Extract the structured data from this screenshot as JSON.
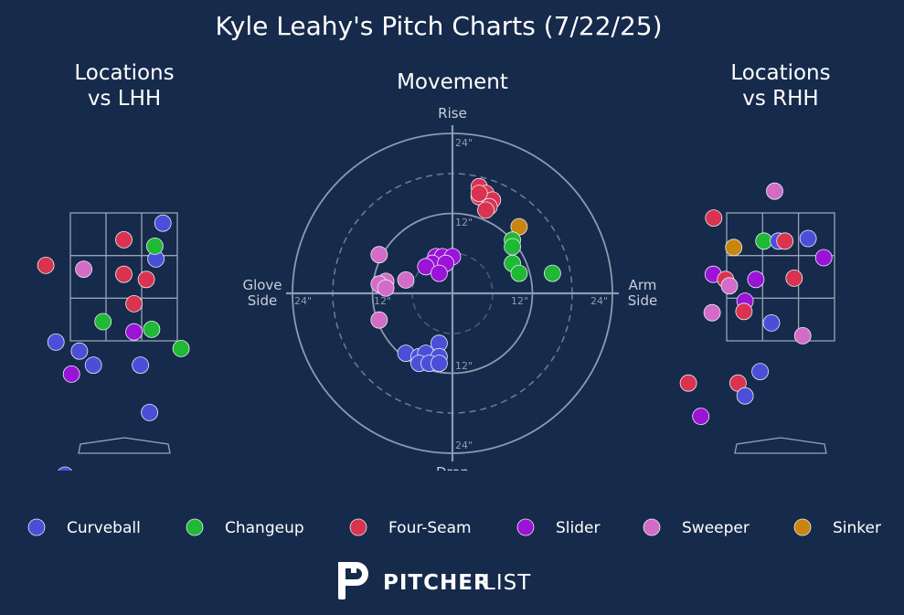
{
  "title": "Kyle Leahy's Pitch Charts (7/22/25)",
  "panels": {
    "lhh": [
      "Locations",
      "vs LHH"
    ],
    "movement": "Movement",
    "rhh": [
      "Locations",
      "vs RHH"
    ]
  },
  "movement_axes": {
    "top": "Rise",
    "bottom": "Drop",
    "left": [
      "Glove",
      "Side"
    ],
    "right": [
      "Arm",
      "Side"
    ],
    "ring_labels": [
      "12\"",
      "24\""
    ]
  },
  "colors": {
    "background": "#162a4b",
    "Curveball": "#4b4fd8",
    "Changeup": "#1fb935",
    "Four-Seam": "#d93350",
    "Slider": "#9b13d6",
    "Sweeper": "#d36cc6",
    "Sinker": "#c8860e"
  },
  "legend": [
    "Curveball",
    "Changeup",
    "Four-Seam",
    "Slider",
    "Sweeper",
    "Sinker"
  ],
  "brand": {
    "bold": "PITCHER",
    "light": "LIST"
  },
  "chart_data": [
    {
      "type": "scatter",
      "title": "Locations vs LHH",
      "xlabel": "",
      "ylabel": "",
      "units": "strike zone widths / heights (zone x: -1..1, y: 0..1)",
      "points": [
        {
          "pitch": "Curveball",
          "x": 0.73,
          "y": 0.92
        },
        {
          "pitch": "Curveball",
          "x": 0.6,
          "y": 0.64
        },
        {
          "pitch": "Curveball",
          "x": -1.27,
          "y": -0.01
        },
        {
          "pitch": "Curveball",
          "x": -0.83,
          "y": -0.08
        },
        {
          "pitch": "Curveball",
          "x": -0.57,
          "y": -0.19
        },
        {
          "pitch": "Curveball",
          "x": 0.31,
          "y": -0.19
        },
        {
          "pitch": "Curveball",
          "x": 0.48,
          "y": -0.56
        },
        {
          "pitch": "Curveball",
          "x": -1.1,
          "y": -1.05
        },
        {
          "pitch": "Changeup",
          "x": 0.58,
          "y": 0.74
        },
        {
          "pitch": "Changeup",
          "x": -0.39,
          "y": 0.15
        },
        {
          "pitch": "Changeup",
          "x": 0.52,
          "y": 0.09
        },
        {
          "pitch": "Changeup",
          "x": 1.07,
          "y": -0.06
        },
        {
          "pitch": "Four-Seam",
          "x": 0.0,
          "y": 0.79
        },
        {
          "pitch": "Four-Seam",
          "x": -1.46,
          "y": 0.59
        },
        {
          "pitch": "Four-Seam",
          "x": 0.0,
          "y": 0.52
        },
        {
          "pitch": "Four-Seam",
          "x": 0.42,
          "y": 0.48
        },
        {
          "pitch": "Four-Seam",
          "x": 0.19,
          "y": 0.29
        },
        {
          "pitch": "Slider",
          "x": 0.19,
          "y": 0.07
        },
        {
          "pitch": "Slider",
          "x": -0.98,
          "y": -0.26
        },
        {
          "pitch": "Sweeper",
          "x": -0.75,
          "y": 0.56
        }
      ]
    },
    {
      "type": "scatter",
      "title": "Movement",
      "units": "inches (horizontal break: + = arm side; vertical break: + = rise)",
      "rings": [
        12,
        24
      ],
      "points": [
        {
          "pitch": "Four-Seam",
          "x": 4,
          "y": 16
        },
        {
          "pitch": "Four-Seam",
          "x": 5,
          "y": 15
        },
        {
          "pitch": "Four-Seam",
          "x": 4,
          "y": 14.5
        },
        {
          "pitch": "Four-Seam",
          "x": 6,
          "y": 14
        },
        {
          "pitch": "Four-Seam",
          "x": 5.5,
          "y": 13
        },
        {
          "pitch": "Four-Seam",
          "x": 5,
          "y": 12.5
        },
        {
          "pitch": "Four-Seam",
          "x": 4,
          "y": 15
        },
        {
          "pitch": "Sinker",
          "x": 10,
          "y": 10
        },
        {
          "pitch": "Changeup",
          "x": 9,
          "y": 8
        },
        {
          "pitch": "Changeup",
          "x": 9,
          "y": 7
        },
        {
          "pitch": "Changeup",
          "x": 9,
          "y": 4.5
        },
        {
          "pitch": "Changeup",
          "x": 10,
          "y": 3
        },
        {
          "pitch": "Changeup",
          "x": 15,
          "y": 3
        },
        {
          "pitch": "Slider",
          "x": -2.5,
          "y": 5.5
        },
        {
          "pitch": "Slider",
          "x": -1.5,
          "y": 5.5
        },
        {
          "pitch": "Slider",
          "x": 0,
          "y": 5.5
        },
        {
          "pitch": "Slider",
          "x": -3,
          "y": 4.5
        },
        {
          "pitch": "Slider",
          "x": -1,
          "y": 4.5
        },
        {
          "pitch": "Slider",
          "x": -4,
          "y": 4
        },
        {
          "pitch": "Slider",
          "x": -2,
          "y": 3
        },
        {
          "pitch": "Sweeper",
          "x": -11,
          "y": 5.8
        },
        {
          "pitch": "Sweeper",
          "x": -7,
          "y": 2
        },
        {
          "pitch": "Sweeper",
          "x": -10,
          "y": 1.8
        },
        {
          "pitch": "Sweeper",
          "x": -11,
          "y": 1.4
        },
        {
          "pitch": "Sweeper",
          "x": -10,
          "y": 0.8
        },
        {
          "pitch": "Sweeper",
          "x": -11,
          "y": -4
        },
        {
          "pitch": "Curveball",
          "x": -2,
          "y": -7.5
        },
        {
          "pitch": "Curveball",
          "x": -7,
          "y": -9
        },
        {
          "pitch": "Curveball",
          "x": -5,
          "y": -9.5
        },
        {
          "pitch": "Curveball",
          "x": -4,
          "y": -9
        },
        {
          "pitch": "Curveball",
          "x": -2,
          "y": -9.5
        },
        {
          "pitch": "Curveball",
          "x": -5,
          "y": -10.5
        },
        {
          "pitch": "Curveball",
          "x": -3.5,
          "y": -10.5
        },
        {
          "pitch": "Curveball",
          "x": -2,
          "y": -10.5
        }
      ]
    },
    {
      "type": "scatter",
      "title": "Locations vs RHH",
      "units": "strike zone widths / heights (zone x: -1..1, y: 0..1)",
      "points": [
        {
          "pitch": "Sweeper",
          "x": -0.11,
          "y": 1.17
        },
        {
          "pitch": "Four-Seam",
          "x": -1.24,
          "y": 0.96
        },
        {
          "pitch": "Changeup",
          "x": -0.31,
          "y": 0.78
        },
        {
          "pitch": "Curveball",
          "x": -0.04,
          "y": 0.78
        },
        {
          "pitch": "Four-Seam",
          "x": 0.08,
          "y": 0.78
        },
        {
          "pitch": "Curveball",
          "x": 0.51,
          "y": 0.8
        },
        {
          "pitch": "Sinker",
          "x": -0.87,
          "y": 0.73
        },
        {
          "pitch": "Slider",
          "x": 0.8,
          "y": 0.65
        },
        {
          "pitch": "Slider",
          "x": -1.25,
          "y": 0.52
        },
        {
          "pitch": "Four-Seam",
          "x": -1.02,
          "y": 0.48
        },
        {
          "pitch": "Sweeper",
          "x": -0.95,
          "y": 0.43
        },
        {
          "pitch": "Slider",
          "x": -0.46,
          "y": 0.48
        },
        {
          "pitch": "Four-Seam",
          "x": 0.25,
          "y": 0.49
        },
        {
          "pitch": "Slider",
          "x": -0.66,
          "y": 0.31
        },
        {
          "pitch": "Four-Seam",
          "x": -0.68,
          "y": 0.23
        },
        {
          "pitch": "Sweeper",
          "x": -1.27,
          "y": 0.22
        },
        {
          "pitch": "Curveball",
          "x": -0.17,
          "y": 0.14
        },
        {
          "pitch": "Sweeper",
          "x": 0.41,
          "y": 0.04
        },
        {
          "pitch": "Curveball",
          "x": -0.38,
          "y": -0.24
        },
        {
          "pitch": "Four-Seam",
          "x": -1.71,
          "y": -0.33
        },
        {
          "pitch": "Four-Seam",
          "x": -0.79,
          "y": -0.33
        },
        {
          "pitch": "Curveball",
          "x": -0.66,
          "y": -0.43
        },
        {
          "pitch": "Slider",
          "x": -1.48,
          "y": -0.59
        }
      ]
    }
  ]
}
